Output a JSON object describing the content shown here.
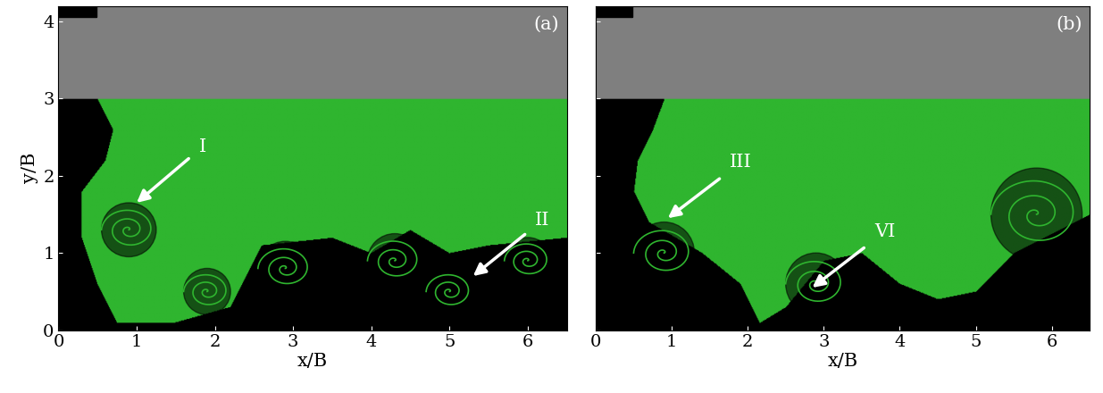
{
  "chart_data": [
    {
      "type": "image",
      "panel_label": "(a)",
      "xlabel": "x/B",
      "ylabel": "y/B",
      "xlim": [
        0,
        6.5
      ],
      "ylim": [
        0,
        4.2
      ],
      "xticks": [
        0,
        1,
        2,
        3,
        4,
        5,
        6
      ],
      "yticks": [
        0,
        1,
        2,
        3,
        4
      ],
      "tick_labels": true,
      "color": "#2fb52f",
      "wall_bottom": 3,
      "front": {
        "y": [
          0,
          0.6,
          1.2,
          1.8,
          2.2,
          2.6,
          3
        ],
        "x": [
          0.8,
          0.5,
          0.3,
          0.3,
          0.6,
          0.7,
          0.5
        ]
      },
      "bed": {
        "x": [
          0,
          0.5,
          1.5,
          2.2,
          2.6,
          3.5,
          4,
          4.5,
          5,
          5.5,
          6.5
        ],
        "y": [
          0,
          0.1,
          0.1,
          0.3,
          1.1,
          1.2,
          1.0,
          1.3,
          1.0,
          1.1,
          1.2
        ]
      },
      "vortices": [
        {
          "x": 0.9,
          "y": 1.3,
          "r": 0.35
        },
        {
          "x": 1.9,
          "y": 0.5,
          "r": 0.3
        },
        {
          "x": 2.9,
          "y": 0.8,
          "r": 0.35
        },
        {
          "x": 4.3,
          "y": 0.9,
          "r": 0.35
        },
        {
          "x": 5.0,
          "y": 0.5,
          "r": 0.3
        },
        {
          "x": 6.0,
          "y": 0.9,
          "r": 0.3
        }
      ],
      "annotations": [
        {
          "text": "I",
          "x": 1.0,
          "y": 1.65
        },
        {
          "text": "II",
          "x": 5.3,
          "y": 0.7
        }
      ]
    },
    {
      "type": "image",
      "panel_label": "(b)",
      "xlabel": "x/B",
      "xlim": [
        0,
        6.5
      ],
      "ylim": [
        0,
        4.2
      ],
      "xticks": [
        0,
        1,
        2,
        3,
        4,
        5,
        6
      ],
      "yticks": [
        0,
        1,
        2,
        3,
        4
      ],
      "tick_labels": "x",
      "color": "#2fb52f",
      "wall_bottom": 3,
      "front": {
        "y": [
          0,
          0.6,
          1.0,
          1.4,
          1.8,
          2.2,
          2.6,
          3
        ],
        "x": [
          2.2,
          1.9,
          1.4,
          0.7,
          0.5,
          0.55,
          0.75,
          0.9
        ]
      },
      "bed": {
        "x": [
          0,
          2,
          2.5,
          3,
          3.5,
          4,
          4.5,
          5,
          5.5,
          6.5
        ],
        "y": [
          0,
          0,
          0.3,
          0.9,
          1.0,
          0.6,
          0.4,
          0.5,
          1.0,
          1.5
        ]
      },
      "vortices": [
        {
          "x": 0.9,
          "y": 1.0,
          "r": 0.4
        },
        {
          "x": 2.9,
          "y": 0.6,
          "r": 0.4
        },
        {
          "x": 5.8,
          "y": 1.5,
          "r": 0.6
        }
      ],
      "annotations": [
        {
          "text": "III",
          "x": 0.95,
          "y": 1.45
        },
        {
          "text": "VI",
          "x": 2.85,
          "y": 0.55
        }
      ]
    }
  ]
}
